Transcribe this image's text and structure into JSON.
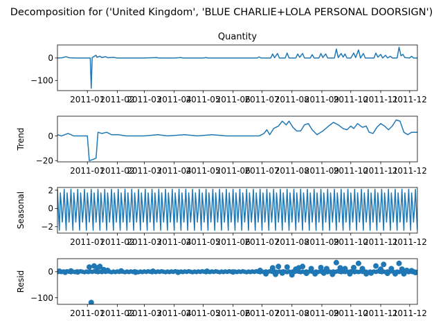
{
  "figure": {
    "suptitle": "Decomposition for ('United Kingdom', 'BLUE CHARLIE+LOLA PERSONAL DOORSIGN')"
  },
  "chart_data": [
    {
      "type": "line",
      "panel": "observed",
      "title": "Quantity",
      "ylabel": "",
      "ylim": [
        -145,
        58
      ],
      "yticks": [
        0,
        -100
      ],
      "x_range": [
        "2010-12-01",
        "2011-12-09"
      ],
      "xticks": [
        "2011-01",
        "2011-02",
        "2011-03",
        "2011-04",
        "2011-05",
        "2011-06",
        "2011-07",
        "2011-08",
        "2011-09",
        "2011-10",
        "2011-11",
        "2011-12"
      ],
      "points": [
        [
          "2010-12-01",
          0
        ],
        [
          "2010-12-06",
          1
        ],
        [
          "2010-12-10",
          6
        ],
        [
          "2010-12-13",
          1
        ],
        [
          "2010-12-20",
          0
        ],
        [
          "2011-01-04",
          0
        ],
        [
          "2011-01-05",
          -135
        ],
        [
          "2011-01-06",
          2
        ],
        [
          "2011-01-10",
          12
        ],
        [
          "2011-01-11",
          3
        ],
        [
          "2011-01-14",
          8
        ],
        [
          "2011-01-16",
          2
        ],
        [
          "2011-01-20",
          6
        ],
        [
          "2011-01-22",
          1
        ],
        [
          "2011-01-28",
          3
        ],
        [
          "2011-02-01",
          0
        ],
        [
          "2011-03-01",
          0
        ],
        [
          "2011-03-14",
          2
        ],
        [
          "2011-03-16",
          0
        ],
        [
          "2011-04-01",
          0
        ],
        [
          "2011-04-08",
          2
        ],
        [
          "2011-04-10",
          0
        ],
        [
          "2011-05-01",
          0
        ],
        [
          "2011-05-04",
          2
        ],
        [
          "2011-05-06",
          0
        ],
        [
          "2011-06-26",
          0
        ],
        [
          "2011-06-28",
          5
        ],
        [
          "2011-06-30",
          0
        ],
        [
          "2011-07-10",
          0
        ],
        [
          "2011-07-12",
          18
        ],
        [
          "2011-07-14",
          1
        ],
        [
          "2011-07-17",
          20
        ],
        [
          "2011-07-19",
          0
        ],
        [
          "2011-07-25",
          0
        ],
        [
          "2011-07-27",
          22
        ],
        [
          "2011-07-29",
          0
        ],
        [
          "2011-08-05",
          0
        ],
        [
          "2011-08-07",
          18
        ],
        [
          "2011-08-09",
          3
        ],
        [
          "2011-08-12",
          20
        ],
        [
          "2011-08-14",
          0
        ],
        [
          "2011-08-20",
          0
        ],
        [
          "2011-08-22",
          15
        ],
        [
          "2011-08-24",
          0
        ],
        [
          "2011-08-29",
          0
        ],
        [
          "2011-08-31",
          20
        ],
        [
          "2011-09-02",
          2
        ],
        [
          "2011-09-05",
          18
        ],
        [
          "2011-09-07",
          0
        ],
        [
          "2011-09-14",
          0
        ],
        [
          "2011-09-16",
          40
        ],
        [
          "2011-09-18",
          2
        ],
        [
          "2011-09-21",
          20
        ],
        [
          "2011-09-23",
          4
        ],
        [
          "2011-09-25",
          18
        ],
        [
          "2011-09-27",
          0
        ],
        [
          "2011-10-01",
          0
        ],
        [
          "2011-10-04",
          22
        ],
        [
          "2011-10-06",
          2
        ],
        [
          "2011-10-09",
          36
        ],
        [
          "2011-10-11",
          0
        ],
        [
          "2011-10-14",
          20
        ],
        [
          "2011-10-16",
          0
        ],
        [
          "2011-10-25",
          0
        ],
        [
          "2011-10-27",
          22
        ],
        [
          "2011-10-29",
          4
        ],
        [
          "2011-11-01",
          16
        ],
        [
          "2011-11-03",
          0
        ],
        [
          "2011-11-06",
          12
        ],
        [
          "2011-11-08",
          0
        ],
        [
          "2011-11-11",
          8
        ],
        [
          "2011-11-13",
          0
        ],
        [
          "2011-11-18",
          0
        ],
        [
          "2011-11-20",
          48
        ],
        [
          "2011-11-22",
          10
        ],
        [
          "2011-11-24",
          16
        ],
        [
          "2011-11-26",
          2
        ],
        [
          "2011-12-01",
          0
        ],
        [
          "2011-12-03",
          8
        ],
        [
          "2011-12-05",
          0
        ],
        [
          "2011-12-09",
          0
        ]
      ]
    },
    {
      "type": "line",
      "panel": "trend",
      "title": "",
      "ylabel": "Trend",
      "ylim": [
        -21,
        16
      ],
      "yticks": [
        0,
        -20
      ],
      "x_range": [
        "2010-12-01",
        "2011-12-09"
      ],
      "xticks": [
        "2011-01",
        "2011-02",
        "2011-03",
        "2011-04",
        "2011-05",
        "2011-06",
        "2011-07",
        "2011-08",
        "2011-09",
        "2011-10",
        "2011-11",
        "2011-12"
      ],
      "points": [
        [
          "2010-12-01",
          1
        ],
        [
          "2010-12-05",
          0
        ],
        [
          "2010-12-12",
          2
        ],
        [
          "2010-12-18",
          0
        ],
        [
          "2010-12-25",
          0
        ],
        [
          "2011-01-01",
          0
        ],
        [
          "2011-01-03",
          -20
        ],
        [
          "2011-01-07",
          -19
        ],
        [
          "2011-01-10",
          -18
        ],
        [
          "2011-01-12",
          3
        ],
        [
          "2011-01-16",
          2
        ],
        [
          "2011-01-21",
          3
        ],
        [
          "2011-01-26",
          1
        ],
        [
          "2011-02-02",
          1
        ],
        [
          "2011-02-10",
          0
        ],
        [
          "2011-03-01",
          0
        ],
        [
          "2011-03-15",
          1
        ],
        [
          "2011-03-25",
          0
        ],
        [
          "2011-04-12",
          1
        ],
        [
          "2011-04-25",
          0
        ],
        [
          "2011-05-10",
          1
        ],
        [
          "2011-05-25",
          0
        ],
        [
          "2011-06-28",
          0
        ],
        [
          "2011-07-03",
          2
        ],
        [
          "2011-07-06",
          5
        ],
        [
          "2011-07-09",
          1
        ],
        [
          "2011-07-13",
          6
        ],
        [
          "2011-07-18",
          8
        ],
        [
          "2011-07-22",
          12
        ],
        [
          "2011-07-26",
          9
        ],
        [
          "2011-07-29",
          12
        ],
        [
          "2011-08-02",
          7
        ],
        [
          "2011-08-06",
          4
        ],
        [
          "2011-08-10",
          4
        ],
        [
          "2011-08-14",
          9
        ],
        [
          "2011-08-18",
          10
        ],
        [
          "2011-08-22",
          5
        ],
        [
          "2011-08-27",
          1
        ],
        [
          "2011-09-02",
          4
        ],
        [
          "2011-09-08",
          8
        ],
        [
          "2011-09-13",
          11
        ],
        [
          "2011-09-18",
          9
        ],
        [
          "2011-09-23",
          6
        ],
        [
          "2011-09-27",
          5
        ],
        [
          "2011-10-01",
          8
        ],
        [
          "2011-10-04",
          6
        ],
        [
          "2011-10-08",
          10
        ],
        [
          "2011-10-13",
          7
        ],
        [
          "2011-10-17",
          8
        ],
        [
          "2011-10-20",
          3
        ],
        [
          "2011-10-24",
          2
        ],
        [
          "2011-10-28",
          7
        ],
        [
          "2011-11-01",
          10
        ],
        [
          "2011-11-05",
          8
        ],
        [
          "2011-11-09",
          5
        ],
        [
          "2011-11-13",
          8
        ],
        [
          "2011-11-17",
          13
        ],
        [
          "2011-11-21",
          12
        ],
        [
          "2011-11-25",
          3
        ],
        [
          "2011-11-29",
          1
        ],
        [
          "2011-12-03",
          3
        ],
        [
          "2011-12-09",
          3
        ]
      ]
    },
    {
      "type": "line",
      "panel": "seasonal",
      "title": "",
      "ylabel": "Seasonal",
      "ylim": [
        -2.7,
        2.3
      ],
      "yticks": [
        2,
        0,
        -2
      ],
      "x_range": [
        "2010-12-01",
        "2011-12-09"
      ],
      "xticks": [
        "2011-01",
        "2011-02",
        "2011-03",
        "2011-04",
        "2011-05",
        "2011-06",
        "2011-07",
        "2011-08",
        "2011-09",
        "2011-10",
        "2011-11",
        "2011-12"
      ],
      "period_days": 7,
      "weekly_pattern": [
        2.1,
        -0.3,
        -2.4,
        1.7,
        0.4,
        -1.5,
        0.0
      ]
    },
    {
      "type": "scatter",
      "panel": "resid",
      "title": "",
      "ylabel": "Resid",
      "ylim": [
        -125,
        50
      ],
      "yticks": [
        0,
        -100
      ],
      "x_range": [
        "2010-12-01",
        "2011-12-09"
      ],
      "xticks": [
        "2011-01",
        "2011-02",
        "2011-03",
        "2011-04",
        "2011-05",
        "2011-06",
        "2011-07",
        "2011-08",
        "2011-09",
        "2011-10",
        "2011-11",
        "2011-12"
      ],
      "baseline": 0,
      "points": [
        [
          "2010-12-03",
          2
        ],
        [
          "2010-12-09",
          -2
        ],
        [
          "2010-12-15",
          3
        ],
        [
          "2010-12-22",
          -1
        ],
        [
          "2011-01-03",
          18
        ],
        [
          "2011-01-05",
          -118
        ],
        [
          "2011-01-08",
          22
        ],
        [
          "2011-01-11",
          15
        ],
        [
          "2011-01-14",
          20
        ],
        [
          "2011-01-18",
          8
        ],
        [
          "2011-01-22",
          5
        ],
        [
          "2011-02-05",
          3
        ],
        [
          "2011-02-20",
          -2
        ],
        [
          "2011-03-10",
          2
        ],
        [
          "2011-04-05",
          -2
        ],
        [
          "2011-05-05",
          2
        ],
        [
          "2011-06-01",
          -1
        ],
        [
          "2011-06-29",
          5
        ],
        [
          "2011-07-05",
          -8
        ],
        [
          "2011-07-12",
          15
        ],
        [
          "2011-07-15",
          -10
        ],
        [
          "2011-07-18",
          20
        ],
        [
          "2011-07-22",
          -5
        ],
        [
          "2011-07-27",
          18
        ],
        [
          "2011-08-01",
          -12
        ],
        [
          "2011-08-05",
          10
        ],
        [
          "2011-08-08",
          15
        ],
        [
          "2011-08-12",
          20
        ],
        [
          "2011-08-16",
          -6
        ],
        [
          "2011-08-21",
          12
        ],
        [
          "2011-08-25",
          -8
        ],
        [
          "2011-08-31",
          16
        ],
        [
          "2011-09-03",
          -5
        ],
        [
          "2011-09-06",
          12
        ],
        [
          "2011-09-12",
          -10
        ],
        [
          "2011-09-16",
          35
        ],
        [
          "2011-09-20",
          15
        ],
        [
          "2011-09-25",
          12
        ],
        [
          "2011-09-30",
          -8
        ],
        [
          "2011-10-04",
          16
        ],
        [
          "2011-10-09",
          32
        ],
        [
          "2011-10-13",
          12
        ],
        [
          "2011-10-17",
          -8
        ],
        [
          "2011-10-22",
          -5
        ],
        [
          "2011-10-27",
          22
        ],
        [
          "2011-11-01",
          10
        ],
        [
          "2011-11-04",
          28
        ],
        [
          "2011-11-08",
          -6
        ],
        [
          "2011-11-12",
          12
        ],
        [
          "2011-11-16",
          -8
        ],
        [
          "2011-11-20",
          32
        ],
        [
          "2011-11-23",
          10
        ],
        [
          "2011-11-25",
          -8
        ],
        [
          "2011-11-28",
          5
        ],
        [
          "2011-12-03",
          4
        ],
        [
          "2011-12-07",
          -3
        ]
      ]
    }
  ]
}
